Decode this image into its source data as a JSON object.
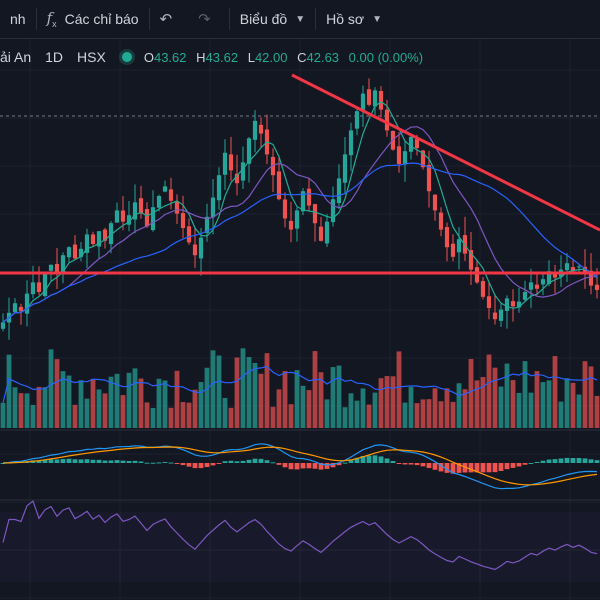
{
  "toolbar": {
    "items": [
      {
        "label": "nh",
        "icon": ""
      },
      {
        "label": "Các chỉ báo",
        "icon": "fx"
      },
      {
        "label": "",
        "icon": "undo-redo"
      },
      {
        "label": "Biểu đồ",
        "icon": "",
        "dropdown": true
      },
      {
        "label": "Hồ sơ",
        "icon": "",
        "dropdown": true
      }
    ]
  },
  "legend": {
    "symbol": "ải An",
    "interval": "1D",
    "exchange": "HSX",
    "status_color": "#22ab94",
    "open_label": "O",
    "open": "43.62",
    "high_label": "H",
    "high": "43.62",
    "low_label": "L",
    "low": "42.00",
    "close_label": "C",
    "close": "42.63",
    "change": "0.00 (0.00%)"
  },
  "colors": {
    "background": "#131722",
    "up": "#26a69a",
    "down": "#ef5350",
    "trendline": "#f23645",
    "ma_short": "#22ab94",
    "ma_mid": "#7e57c2",
    "ma_long": "#2962ff",
    "macd": "#2196f3",
    "signal": "#ff9800",
    "rsi": "#7e57c2"
  },
  "chart_data": {
    "type": "candlestick",
    "panes": [
      "price",
      "volume",
      "macd",
      "rsi"
    ],
    "close_series": [
      40.6,
      41.2,
      41.8,
      41.3,
      42.4,
      43.1,
      42.5,
      43.6,
      44.2,
      43.7,
      44.8,
      45.3,
      44.6,
      45.2,
      46.1,
      45.5,
      46.3,
      45.7,
      46.8,
      47.6,
      46.9,
      47.3,
      48.1,
      47.4,
      46.6,
      47.8,
      48.5,
      49.1,
      48.2,
      47.4,
      46.5,
      45.6,
      44.8,
      45.9,
      47.2,
      48.4,
      49.8,
      51.2,
      50.1,
      49.3,
      50.6,
      52.1,
      53.2,
      52.4,
      51.1,
      49.8,
      48.3,
      47.1,
      46.4,
      47.6,
      48.8,
      47.9,
      46.8,
      45.7,
      46.9,
      48.3,
      49.6,
      51.1,
      52.6,
      53.8,
      54.9,
      54.2,
      55.1,
      53.9,
      52.6,
      51.4,
      50.5,
      51.3,
      52.2,
      51.5,
      50.3,
      48.8,
      47.6,
      46.4,
      45.3,
      44.7,
      45.8,
      44.9,
      43.9,
      43.1,
      42.2,
      41.5,
      40.8,
      41.4,
      42.1,
      41.6,
      41.9,
      42.5,
      43.1,
      42.7,
      43.3,
      43.8,
      43.4,
      43.9,
      44.3,
      43.8,
      44.1,
      43.6,
      42.9,
      42.63
    ],
    "trendlines": [
      {
        "name": "descending resistance",
        "from": [
          54.2,
          "bar 63"
        ],
        "to": [
          44.0,
          "bar 100"
        ]
      },
      {
        "name": "horizontal support",
        "value": 42.0
      }
    ]
  }
}
